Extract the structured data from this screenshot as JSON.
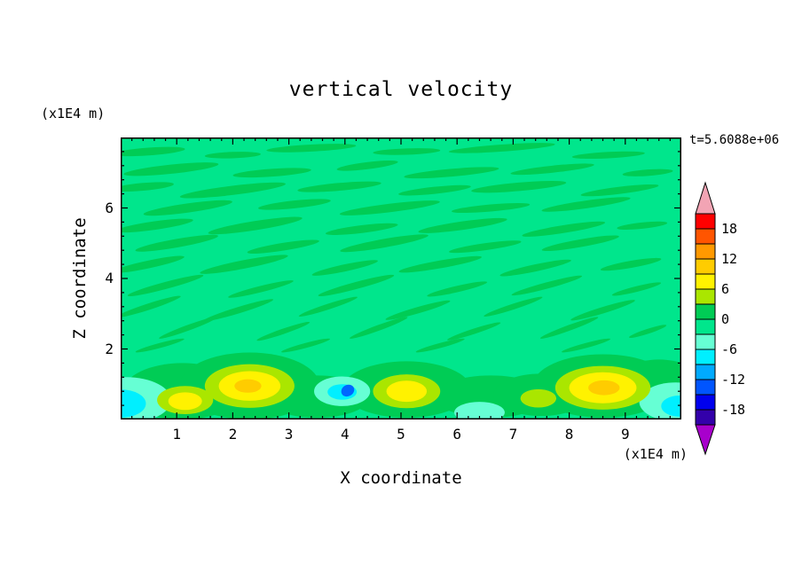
{
  "title": "vertical velocity",
  "timestamp": "t=5.6088e+06",
  "axes": {
    "x_label": "X coordinate",
    "x_unit": "(x1E4 m)",
    "y_label": "Z coordinate",
    "y_unit": "(x1E4 m)",
    "x_ticks": [
      "1",
      "2",
      "3",
      "4",
      "5",
      "6",
      "7",
      "8",
      "9"
    ],
    "y_ticks": [
      "2",
      "4",
      "6"
    ]
  },
  "colorbar": {
    "labels": [
      "18",
      "12",
      "6",
      "0",
      "-6",
      "-12",
      "-18"
    ]
  },
  "chart_data": {
    "type": "heatmap",
    "style": "filled-contour",
    "title": "vertical velocity",
    "xlabel": "X coordinate (x1E4 m)",
    "ylabel": "Z coordinate (x1E4 m)",
    "time_annotation": "t=5.6088e+06",
    "xlim": [
      0,
      10
    ],
    "ylim": [
      0,
      8
    ],
    "x_major_ticks": [
      1,
      2,
      3,
      4,
      5,
      6,
      7,
      8,
      9
    ],
    "y_major_ticks": [
      2,
      4,
      6
    ],
    "minor_tick_step_x": 0.2,
    "minor_tick_step_y": 0.4,
    "colorbar": {
      "levels": [
        -21,
        -18,
        -15,
        -12,
        -9,
        -6,
        -3,
        0,
        3,
        6,
        9,
        12,
        15,
        18,
        21
      ],
      "labeled_levels": [
        18,
        12,
        6,
        0,
        -6,
        -12,
        -18
      ],
      "segment_colors_top_to_bottom": [
        "#FF0000",
        "#FF5500",
        "#FF9900",
        "#FFCC00",
        "#FFF200",
        "#AAE600",
        "#00CC55",
        "#00E68C",
        "#66FFD4",
        "#00EFFF",
        "#00AAFF",
        "#0055FF",
        "#0000EE",
        "#3300AA"
      ],
      "over_color": "#F2A4B4",
      "under_color": "#A800CC"
    },
    "field": {
      "background_color": "#00E68C",
      "streak_color": "#00CC55",
      "streaks": [
        [
          0.5,
          7.6,
          1.3,
          0.22,
          -4
        ],
        [
          2.0,
          7.5,
          1.0,
          0.18,
          -2
        ],
        [
          3.4,
          7.7,
          1.6,
          0.2,
          -3
        ],
        [
          5.1,
          7.6,
          1.2,
          0.18,
          -2
        ],
        [
          6.8,
          7.7,
          1.9,
          0.2,
          -4
        ],
        [
          8.7,
          7.5,
          1.3,
          0.18,
          -3
        ],
        [
          0.9,
          7.1,
          1.7,
          0.26,
          -6
        ],
        [
          2.7,
          7.0,
          1.4,
          0.22,
          -4
        ],
        [
          4.4,
          7.2,
          1.1,
          0.2,
          -7
        ],
        [
          5.9,
          7.0,
          1.7,
          0.22,
          -5
        ],
        [
          7.7,
          7.1,
          1.5,
          0.2,
          -6
        ],
        [
          9.4,
          7.0,
          0.9,
          0.18,
          -4
        ],
        [
          0.4,
          6.6,
          1.1,
          0.22,
          -5
        ],
        [
          2.0,
          6.5,
          1.9,
          0.26,
          -7
        ],
        [
          3.9,
          6.6,
          1.5,
          0.22,
          -5
        ],
        [
          5.6,
          6.5,
          1.3,
          0.2,
          -6
        ],
        [
          7.1,
          6.6,
          1.7,
          0.24,
          -5
        ],
        [
          8.9,
          6.5,
          1.4,
          0.2,
          -7
        ],
        [
          1.2,
          6.0,
          1.6,
          0.26,
          -8
        ],
        [
          3.1,
          6.1,
          1.3,
          0.22,
          -6
        ],
        [
          4.8,
          6.0,
          1.8,
          0.24,
          -7
        ],
        [
          6.6,
          6.0,
          1.4,
          0.2,
          -5
        ],
        [
          8.3,
          6.1,
          1.6,
          0.22,
          -8
        ],
        [
          0.6,
          5.5,
          1.4,
          0.24,
          -8
        ],
        [
          2.4,
          5.5,
          1.7,
          0.26,
          -9
        ],
        [
          4.3,
          5.4,
          1.3,
          0.22,
          -7
        ],
        [
          6.1,
          5.5,
          1.6,
          0.24,
          -8
        ],
        [
          7.9,
          5.4,
          1.5,
          0.22,
          -9
        ],
        [
          9.3,
          5.5,
          0.9,
          0.18,
          -6
        ],
        [
          1.0,
          5.0,
          1.5,
          0.24,
          -10
        ],
        [
          2.9,
          4.9,
          1.3,
          0.22,
          -9
        ],
        [
          4.7,
          5.0,
          1.6,
          0.24,
          -10
        ],
        [
          6.5,
          4.9,
          1.3,
          0.2,
          -8
        ],
        [
          8.2,
          5.0,
          1.4,
          0.22,
          -10
        ],
        [
          0.5,
          4.4,
          1.3,
          0.22,
          -12
        ],
        [
          2.2,
          4.4,
          1.6,
          0.24,
          -11
        ],
        [
          4.0,
          4.3,
          1.2,
          0.2,
          -12
        ],
        [
          5.7,
          4.4,
          1.5,
          0.22,
          -10
        ],
        [
          7.4,
          4.3,
          1.3,
          0.2,
          -12
        ],
        [
          9.1,
          4.4,
          1.1,
          0.2,
          -10
        ],
        [
          0.8,
          3.8,
          1.4,
          0.2,
          -15
        ],
        [
          2.5,
          3.7,
          1.2,
          0.18,
          -14
        ],
        [
          4.2,
          3.8,
          1.4,
          0.2,
          -15
        ],
        [
          6.0,
          3.7,
          1.1,
          0.18,
          -13
        ],
        [
          7.6,
          3.8,
          1.3,
          0.18,
          -15
        ],
        [
          9.2,
          3.7,
          0.9,
          0.16,
          -14
        ],
        [
          0.5,
          3.2,
          1.2,
          0.18,
          -18
        ],
        [
          2.1,
          3.1,
          1.3,
          0.18,
          -17
        ],
        [
          3.7,
          3.2,
          1.1,
          0.16,
          -18
        ],
        [
          5.3,
          3.1,
          1.2,
          0.18,
          -16
        ],
        [
          7.0,
          3.2,
          1.1,
          0.16,
          -18
        ],
        [
          8.6,
          3.1,
          1.2,
          0.18,
          -17
        ],
        [
          1.2,
          2.6,
          1.1,
          0.16,
          -20
        ],
        [
          2.9,
          2.5,
          1.0,
          0.15,
          -19
        ],
        [
          4.6,
          2.6,
          1.1,
          0.16,
          -20
        ],
        [
          6.3,
          2.5,
          1.0,
          0.15,
          -18
        ],
        [
          8.0,
          2.6,
          1.1,
          0.16,
          -20
        ],
        [
          9.4,
          2.5,
          0.7,
          0.14,
          -18
        ],
        [
          0.7,
          2.1,
          0.9,
          0.14,
          -15
        ],
        [
          3.3,
          2.1,
          0.9,
          0.14,
          -15
        ],
        [
          5.7,
          2.1,
          0.9,
          0.14,
          -15
        ],
        [
          8.3,
          2.1,
          0.9,
          0.14,
          -15
        ]
      ],
      "blobs": [
        [
          1.1,
          0.8,
          1.05,
          0.8,
          "#00CC55",
          0
        ],
        [
          2.3,
          0.95,
          1.25,
          0.95,
          "#00CC55",
          0
        ],
        [
          3.5,
          0.65,
          0.95,
          0.6,
          "#00CC55",
          0
        ],
        [
          5.1,
          0.85,
          1.15,
          0.8,
          "#00CC55",
          0
        ],
        [
          6.6,
          0.65,
          1.0,
          0.6,
          "#00CC55",
          0
        ],
        [
          7.5,
          0.7,
          0.85,
          0.6,
          "#00CC55",
          0
        ],
        [
          8.6,
          0.95,
          1.25,
          0.9,
          "#00CC55",
          0
        ],
        [
          9.6,
          1.0,
          0.8,
          0.7,
          "#00CC55",
          0
        ],
        [
          0.1,
          0.55,
          0.8,
          0.65,
          "#66FFD4",
          0
        ],
        [
          3.95,
          0.8,
          0.5,
          0.42,
          "#66FFD4",
          0
        ],
        [
          6.4,
          0.2,
          0.45,
          0.3,
          "#66FFD4",
          0
        ],
        [
          9.9,
          0.5,
          0.65,
          0.55,
          "#66FFD4",
          0
        ],
        [
          0.0,
          0.45,
          0.45,
          0.4,
          "#00EFFF",
          0
        ],
        [
          3.95,
          0.78,
          0.26,
          0.22,
          "#00EFFF",
          0
        ],
        [
          9.97,
          0.38,
          0.33,
          0.3,
          "#00EFFF",
          0
        ],
        [
          4.05,
          0.82,
          0.12,
          0.16,
          "#0066FF",
          -30
        ],
        [
          1.15,
          0.55,
          0.5,
          0.4,
          "#AAE600",
          0
        ],
        [
          2.3,
          0.95,
          0.8,
          0.62,
          "#AAE600",
          0
        ],
        [
          5.1,
          0.8,
          0.6,
          0.48,
          "#AAE600",
          0
        ],
        [
          7.45,
          0.6,
          0.32,
          0.26,
          "#AAE600",
          0
        ],
        [
          8.6,
          0.9,
          0.85,
          0.62,
          "#AAE600",
          0
        ],
        [
          1.15,
          0.52,
          0.3,
          0.25,
          "#FFF200",
          0
        ],
        [
          2.3,
          0.95,
          0.55,
          0.42,
          "#FFF200",
          0
        ],
        [
          5.1,
          0.8,
          0.36,
          0.3,
          "#FFF200",
          0
        ],
        [
          8.6,
          0.9,
          0.6,
          0.44,
          "#FFF200",
          0
        ],
        [
          2.27,
          0.95,
          0.24,
          0.19,
          "#FFCC00",
          0
        ],
        [
          8.62,
          0.9,
          0.28,
          0.21,
          "#FFCC00",
          0
        ]
      ]
    }
  }
}
